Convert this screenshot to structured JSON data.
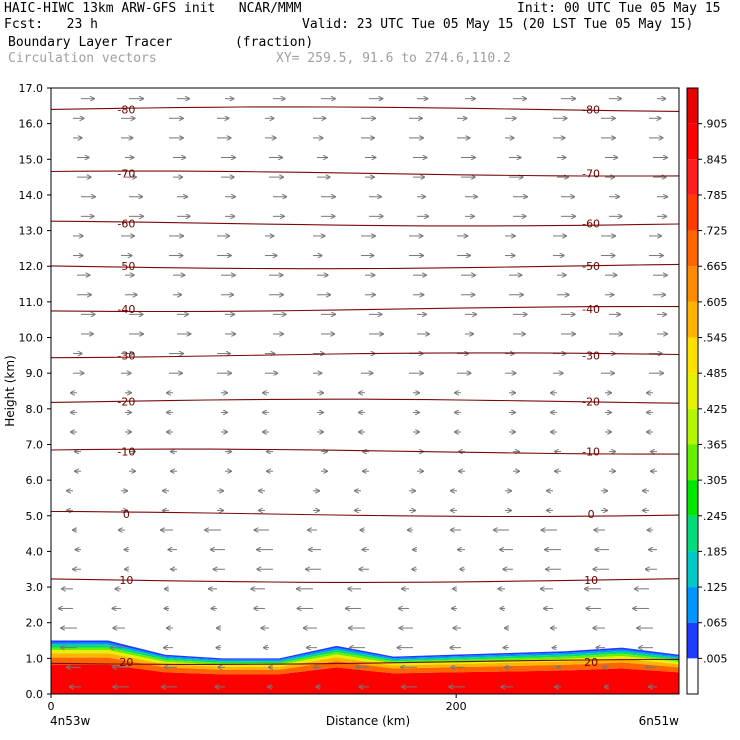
{
  "header": {
    "line1_left": "HAIC-HIWC 13km ARW-GFS init   NCAR/MMM",
    "line1_right": "Init: 00 UTC Tue 05 May 15",
    "line2_left": "Fcst:   23 h",
    "line2_right": "Valid: 23 UTC Tue 05 May 15 (20 LST Tue 05 May 15)",
    "line3_left": "Boundary Layer Tracer        (fraction)",
    "line4_left": "Circulation vectors",
    "line4_right": "XY= 259.5, 91.6 to 274.6,110.2"
  },
  "chart_data": {
    "type": "heatmap",
    "xlabel": "Distance (km)",
    "ylabel": "Height (km)",
    "x_start_label": "4n53w",
    "x_end_label": "6n51w",
    "x_ticks": [
      "0",
      "200"
    ],
    "y_ticks": [
      "0.0",
      "1.0",
      "2.0",
      "3.0",
      "4.0",
      "5.0",
      "6.0",
      "7.0",
      "8.0",
      "9.0",
      "10.0",
      "11.0",
      "12.0",
      "13.0",
      "14.0",
      "15.0",
      "16.0",
      "17.0"
    ],
    "ylim": [
      0,
      17
    ],
    "xlim": [
      0,
      310
    ],
    "colorbar": {
      "labels": [
        ".005",
        ".065",
        ".125",
        ".185",
        ".245",
        ".305",
        ".365",
        ".425",
        ".485",
        ".545",
        ".605",
        ".665",
        ".725",
        ".785",
        ".845",
        ".905"
      ],
      "colors": [
        "#ffffff",
        "#1e3cff",
        "#0096ff",
        "#00c8c8",
        "#00dc7a",
        "#00e600",
        "#64f000",
        "#b4f500",
        "#e6f000",
        "#ffe100",
        "#ffb400",
        "#ff8c00",
        "#ff6400",
        "#ff3c00",
        "#ff1e1e",
        "#ff0000",
        "#e60000"
      ]
    },
    "temperature_contours": [
      {
        "label": "-80",
        "height": 16.4
      },
      {
        "label": "-70",
        "height": 14.6
      },
      {
        "label": "-60",
        "height": 13.2
      },
      {
        "label": "-50",
        "height": 12.0
      },
      {
        "label": "-40",
        "height": 10.8
      },
      {
        "label": "-30",
        "height": 9.5
      },
      {
        "label": "-20",
        "height": 8.2
      },
      {
        "label": "-10",
        "height": 6.8
      },
      {
        "label": "0",
        "height": 5.05
      },
      {
        "label": "10",
        "height": 3.2
      },
      {
        "label": "20",
        "height": 0.9
      }
    ],
    "tracer_top_height_km": [
      1.5,
      1.5,
      1.1,
      1.0,
      1.0,
      1.35,
      1.05,
      1.1,
      1.15,
      1.2,
      1.3,
      1.1
    ],
    "grid": false,
    "legend_position": "right"
  }
}
